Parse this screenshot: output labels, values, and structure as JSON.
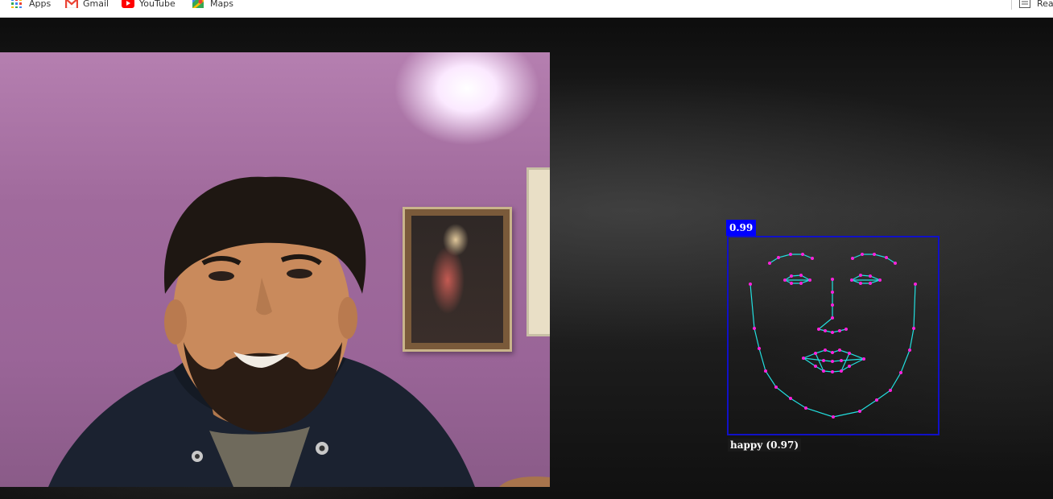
{
  "bookmarks": {
    "apps": "Apps",
    "gmail": "Gmail",
    "youtube": "YouTube",
    "maps": "Maps",
    "reading_list": "Rea"
  },
  "detection": {
    "score": "0.99",
    "expression_label": "happy (0.97)",
    "box_color": "#0000ff",
    "landmark_line_color": "#22e0e0",
    "landmark_point_color": "#ff22dd"
  }
}
